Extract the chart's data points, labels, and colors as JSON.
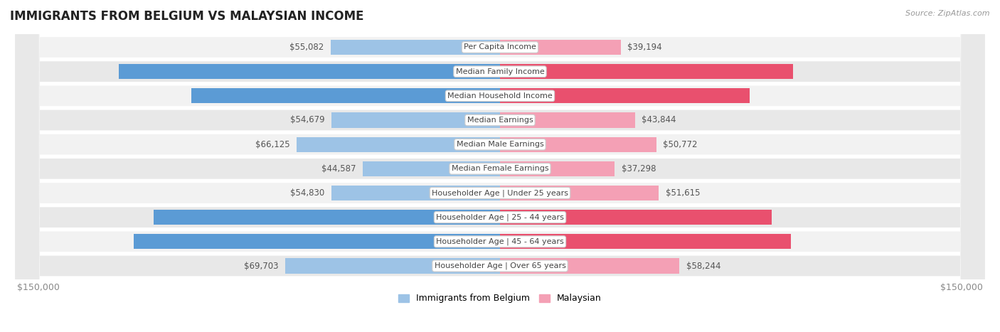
{
  "title": "IMMIGRANTS FROM BELGIUM VS MALAYSIAN INCOME",
  "source": "Source: ZipAtlas.com",
  "categories": [
    "Per Capita Income",
    "Median Family Income",
    "Median Household Income",
    "Median Earnings",
    "Median Male Earnings",
    "Median Female Earnings",
    "Householder Age | Under 25 years",
    "Householder Age | 25 - 44 years",
    "Householder Age | 45 - 64 years",
    "Householder Age | Over 65 years"
  ],
  "belgium_values": [
    55082,
    123831,
    100306,
    54679,
    66125,
    44587,
    54830,
    112575,
    118932,
    69703
  ],
  "malaysian_values": [
    39194,
    95230,
    81064,
    43844,
    50772,
    37298,
    51615,
    88291,
    94517,
    58244
  ],
  "belgium_color_large": "#5b9bd5",
  "belgium_color_small": "#9dc3e6",
  "malaysian_color_large": "#e9506e",
  "malaysian_color_small": "#f4a0b5",
  "label_inside_color": "#ffffff",
  "label_outside_color": "#555555",
  "max_value": 150000,
  "row_bg_odd": "#f2f2f2",
  "row_bg_even": "#e8e8e8",
  "background_color": "#ffffff",
  "belgium_legend": "Immigrants from Belgium",
  "malaysian_legend": "Malaysian",
  "inside_threshold": 70000,
  "label_fontsize": 8.5,
  "category_fontsize": 8.0
}
